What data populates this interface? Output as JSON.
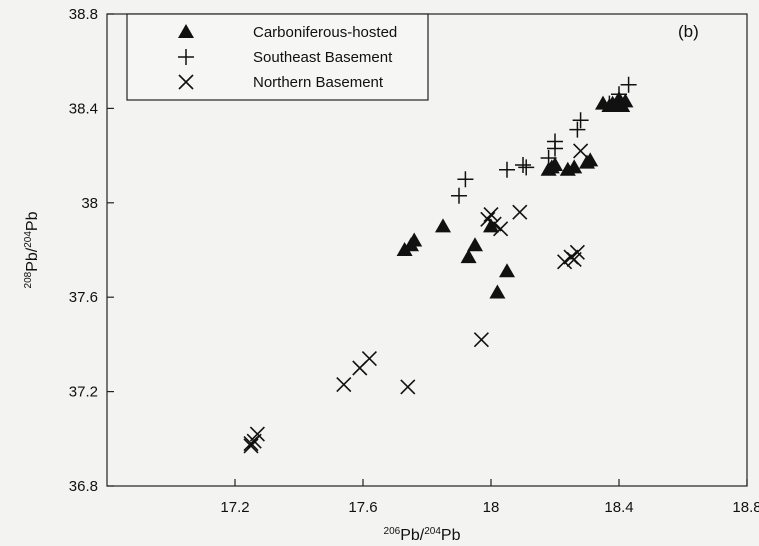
{
  "chart_data": {
    "type": "scatter",
    "panel_label": "(b)",
    "xlabel": {
      "sup1": "206",
      "base1": "Pb/",
      "sup2": "204",
      "base2": "Pb"
    },
    "ylabel": {
      "sup1": "208",
      "base1": "Pb/",
      "sup2": "204",
      "base2": "Pb"
    },
    "xlim": [
      16.8,
      18.8
    ],
    "ylim": [
      36.8,
      38.8
    ],
    "xticks": [
      "17.2",
      "17.6",
      "18",
      "18.4",
      "18.8"
    ],
    "yticks": [
      "36.8",
      "37.2",
      "37.6",
      "38",
      "38.4",
      "38.8"
    ],
    "legend_position": "top-left",
    "series": [
      {
        "name": "Carboniferous-hosted",
        "marker": "triangle",
        "color": "#111111",
        "points": [
          [
            17.73,
            37.8
          ],
          [
            17.75,
            37.82
          ],
          [
            17.76,
            37.84
          ],
          [
            17.85,
            37.9
          ],
          [
            17.93,
            37.77
          ],
          [
            17.95,
            37.82
          ],
          [
            18.0,
            37.9
          ],
          [
            18.02,
            37.62
          ],
          [
            18.05,
            37.71
          ],
          [
            18.18,
            38.14
          ],
          [
            18.19,
            38.15
          ],
          [
            18.2,
            38.16
          ],
          [
            18.24,
            38.14
          ],
          [
            18.26,
            38.15
          ],
          [
            18.3,
            38.17
          ],
          [
            18.31,
            38.18
          ],
          [
            18.35,
            38.42
          ],
          [
            18.37,
            38.41
          ],
          [
            18.38,
            38.42
          ],
          [
            18.4,
            38.44
          ],
          [
            18.41,
            38.41
          ],
          [
            18.42,
            38.43
          ]
        ]
      },
      {
        "name": "Southeast Basement",
        "marker": "plus",
        "color": "#111111",
        "points": [
          [
            17.9,
            38.03
          ],
          [
            17.92,
            38.1
          ],
          [
            18.05,
            38.14
          ],
          [
            18.1,
            38.16
          ],
          [
            18.11,
            38.15
          ],
          [
            18.18,
            38.19
          ],
          [
            18.2,
            38.23
          ],
          [
            18.2,
            38.26
          ],
          [
            18.27,
            38.31
          ],
          [
            18.28,
            38.35
          ],
          [
            18.37,
            38.42
          ],
          [
            18.4,
            38.46
          ],
          [
            18.43,
            38.5
          ]
        ]
      },
      {
        "name": "Northern Basement",
        "marker": "cross",
        "color": "#111111",
        "points": [
          [
            17.25,
            36.98
          ],
          [
            17.25,
            36.97
          ],
          [
            17.26,
            36.99
          ],
          [
            17.27,
            37.02
          ],
          [
            17.54,
            37.23
          ],
          [
            17.59,
            37.3
          ],
          [
            17.62,
            37.34
          ],
          [
            17.74,
            37.22
          ],
          [
            17.97,
            37.42
          ],
          [
            17.99,
            37.93
          ],
          [
            18.0,
            37.95
          ],
          [
            18.01,
            37.91
          ],
          [
            18.03,
            37.89
          ],
          [
            18.09,
            37.96
          ],
          [
            18.23,
            37.75
          ],
          [
            18.25,
            37.77
          ],
          [
            18.26,
            37.76
          ],
          [
            18.27,
            37.79
          ],
          [
            18.28,
            38.22
          ]
        ]
      }
    ]
  }
}
